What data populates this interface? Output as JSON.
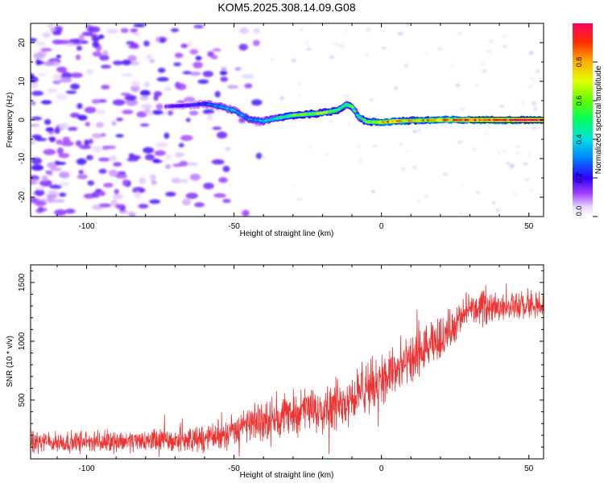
{
  "title": "KOM5.2025.308.14.09.G08",
  "chart_data": [
    {
      "type": "heatmap",
      "xlabel": "Height of straight line (km)",
      "ylabel": "Frequency (Hz)",
      "xlim": [
        -119,
        55
      ],
      "ylim": [
        -25,
        25
      ],
      "xticks": [
        -100,
        -50,
        0,
        50
      ],
      "yticks": [
        -20,
        -10,
        0,
        10,
        20
      ],
      "colorbar": {
        "label": "Normalized spectral amplitude",
        "range": [
          0,
          1
        ],
        "ticks": [
          "0.0",
          "0.2",
          "0.4",
          "0.6",
          "0.8"
        ]
      },
      "ridge": {
        "description": "Dominant spectral ridge (frequency vs height)",
        "x": [
          -73,
          -65,
          -60,
          -55,
          -50,
          -45,
          -40,
          -35,
          -30,
          -25,
          -20,
          -15,
          -12,
          -10,
          -8,
          -5,
          0,
          5,
          10,
          20,
          30,
          40,
          55
        ],
        "y": [
          3.5,
          3.8,
          4.2,
          3.5,
          2.5,
          0.2,
          -0.3,
          0.5,
          1.2,
          1.5,
          1.8,
          2.5,
          4.0,
          3.5,
          1.0,
          -0.5,
          -0.6,
          -0.3,
          -0.2,
          0.0,
          0.0,
          0.0,
          0.0
        ],
        "amplitude": [
          0.15,
          0.2,
          0.25,
          0.3,
          0.35,
          0.3,
          0.35,
          0.45,
          0.55,
          0.6,
          0.65,
          0.55,
          0.5,
          0.55,
          0.4,
          0.55,
          0.75,
          0.8,
          0.7,
          0.8,
          0.9,
          0.95,
          0.95
        ]
      },
      "noise": {
        "x_range": [
          -119,
          -40
        ],
        "y_range": [
          -25,
          25
        ],
        "max_amplitude": 0.2
      }
    },
    {
      "type": "line",
      "xlabel": "Height of straight line (km)",
      "ylabel": "SNR (10 * v/v)",
      "xlim": [
        -119,
        55
      ],
      "ylim": [
        0,
        1650
      ],
      "xticks": [
        -100,
        -50,
        0,
        50
      ],
      "yticks": [
        500,
        1000,
        1500
      ],
      "color": "#ee3333",
      "trend": {
        "x": [
          -119,
          -100,
          -80,
          -60,
          -50,
          -40,
          -30,
          -20,
          -10,
          0,
          10,
          20,
          30,
          40,
          55
        ],
        "mean": [
          140,
          145,
          155,
          165,
          250,
          330,
          390,
          430,
          520,
          680,
          820,
          1020,
          1270,
          1300,
          1300
        ],
        "spread": [
          85,
          85,
          90,
          100,
          130,
          150,
          170,
          190,
          210,
          220,
          200,
          180,
          120,
          110,
          110
        ]
      }
    }
  ]
}
